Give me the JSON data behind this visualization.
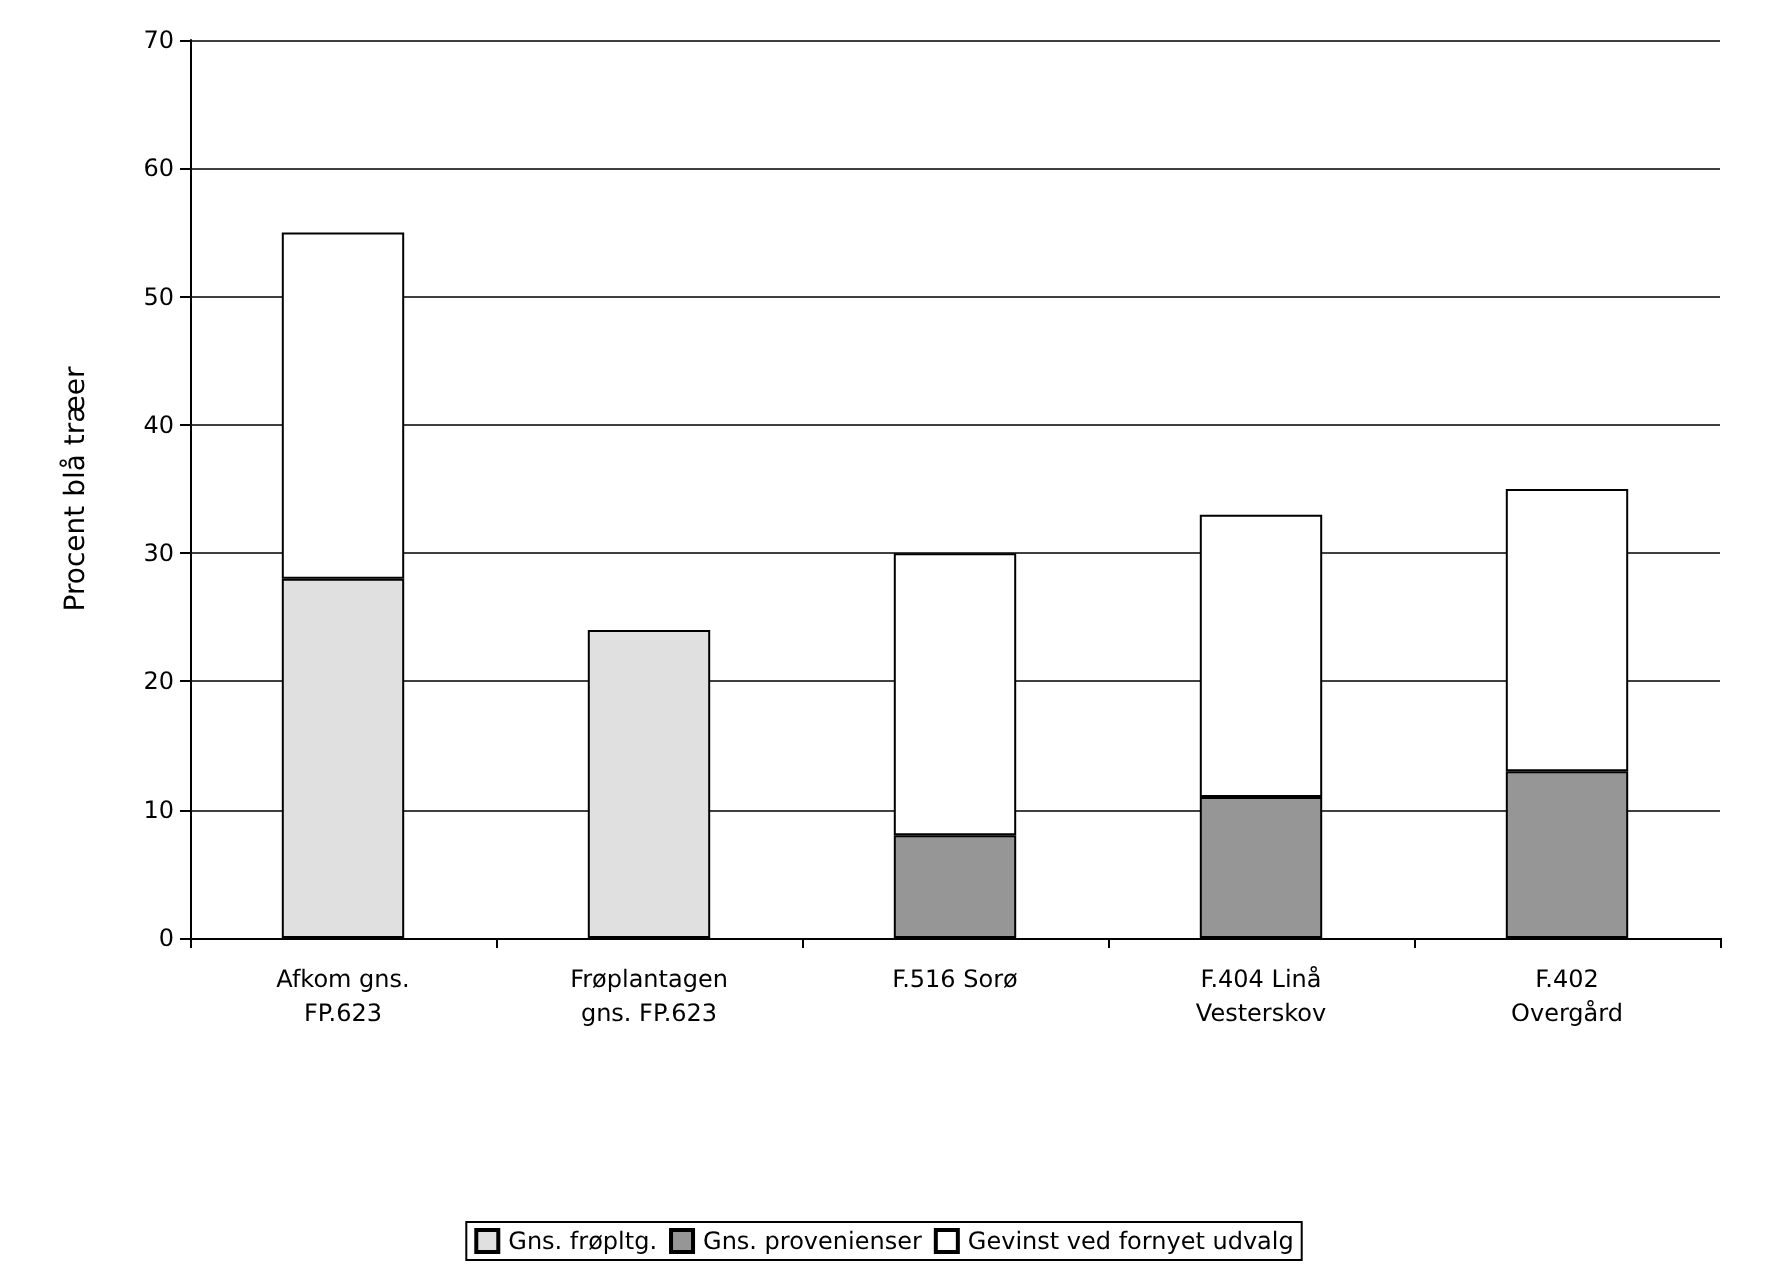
{
  "chart_data": {
    "type": "bar",
    "stacked": true,
    "ylabel": "Procent blå træer",
    "categories": [
      "Afkom gns.\nFP.623",
      "Frøplantagen\ngns. FP.623",
      "F.516 Sorø",
      "F.404 Linå\nVesterskov",
      "F.402\nOvergård"
    ],
    "series": [
      {
        "name": "Gns. frøpltg.",
        "color": "#e0e0e0",
        "values": [
          28,
          24,
          null,
          null,
          null
        ]
      },
      {
        "name": "Gns. provenienser",
        "color": "#969696",
        "values": [
          null,
          null,
          8,
          11,
          13
        ]
      },
      {
        "name": "Gevinst ved fornyet udvalg",
        "color": "#ffffff",
        "values": [
          27,
          null,
          22,
          22,
          22
        ]
      }
    ],
    "ylim": [
      0,
      70
    ],
    "yticks": [
      0,
      10,
      20,
      30,
      40,
      50,
      60,
      70
    ],
    "grid": "y",
    "legend": "bottom"
  }
}
